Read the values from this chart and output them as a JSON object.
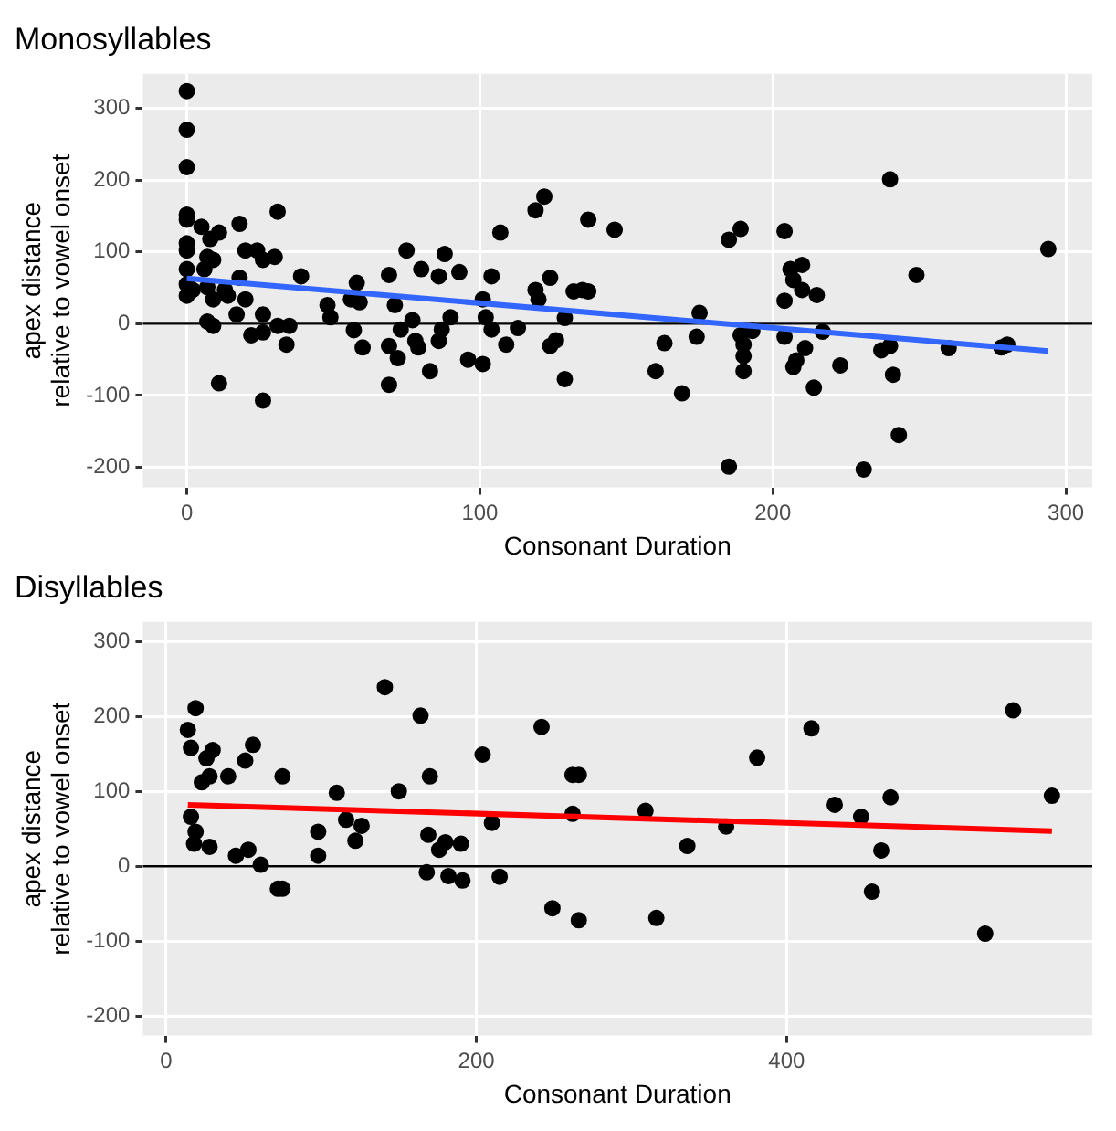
{
  "chart_data": [
    {
      "type": "scatter",
      "title": "Monosyllables",
      "xlabel": "Consonant Duration",
      "ylabel": "apex distance\nrelative to vowel onset",
      "xlim": [
        -15,
        309
      ],
      "ylim": [
        -228,
        348
      ],
      "xticks": [
        0,
        100,
        200,
        300
      ],
      "yticks": [
        -200,
        -100,
        0,
        100,
        200,
        300
      ],
      "grid": true,
      "legend": false,
      "ref_lines": [
        {
          "axis": "y",
          "value": 0,
          "color": "#000000"
        }
      ],
      "series": [
        {
          "type": "scatter",
          "marker": "circle",
          "color": "#000000",
          "x": [
            0,
            0,
            0,
            0,
            0,
            0,
            0,
            0,
            0,
            0,
            5,
            8,
            7,
            11,
            6,
            9,
            2,
            7,
            13,
            9,
            14,
            18,
            20,
            24,
            26,
            30,
            31,
            18,
            20,
            17,
            22,
            26,
            26,
            7,
            9,
            11,
            26,
            31,
            35,
            34,
            39,
            48,
            49,
            58,
            56,
            59,
            57,
            60,
            69,
            69,
            69,
            71,
            72,
            75,
            73,
            77,
            78,
            79,
            80,
            83,
            86,
            88,
            86,
            87,
            90,
            93,
            96,
            101,
            101,
            102,
            104,
            104,
            107,
            109,
            113,
            119,
            122,
            119,
            120,
            124,
            124,
            126,
            129,
            129,
            137,
            132,
            135,
            137,
            146,
            160,
            163,
            169,
            174,
            175,
            185,
            189,
            185,
            189,
            190,
            190,
            190,
            193,
            204,
            206,
            210,
            207,
            210,
            204,
            215,
            204,
            211,
            208,
            207,
            217,
            214,
            223,
            231,
            240,
            237,
            240,
            241,
            243,
            249,
            260,
            278,
            280,
            294
          ],
          "values": [
            324,
            270,
            218,
            152,
            145,
            112,
            102,
            76,
            55,
            39,
            135,
            118,
            93,
            127,
            76,
            89,
            47,
            51,
            47,
            34,
            39,
            139,
            102,
            102,
            89,
            93,
            156,
            64,
            34,
            13,
            -16,
            -12,
            13,
            3,
            -3,
            -83,
            -107,
            -3,
            -3,
            -29,
            66,
            26,
            9,
            57,
            34,
            30,
            -9,
            -33,
            68,
            -31,
            -85,
            26,
            -48,
            102,
            -8,
            5,
            -24,
            -33,
            76,
            -66,
            66,
            97,
            -24,
            -8,
            9,
            72,
            -50,
            -56,
            34,
            9,
            66,
            -8,
            127,
            -29,
            -6,
            158,
            177,
            47,
            34,
            64,
            -31,
            -23,
            -77,
            8,
            145,
            45,
            47,
            45,
            131,
            -66,
            -27,
            -97,
            -18,
            15,
            117,
            132,
            -199,
            -16,
            -29,
            -45,
            -66,
            -10,
            129,
            76,
            82,
            61,
            47,
            32,
            40,
            -18,
            -34,
            -51,
            -60,
            -11,
            -89,
            -58,
            -203,
            201,
            -37,
            -31,
            -71,
            -155,
            68,
            -34,
            -33,
            -29,
            104
          ]
        },
        {
          "type": "line",
          "marker": "none",
          "line_style": "solid",
          "color": "#3366ff",
          "x": [
            0,
            294
          ],
          "values": [
            63,
            -38
          ]
        }
      ]
    },
    {
      "type": "scatter",
      "title": "Disyllables",
      "xlabel": "Consonant Duration",
      "ylabel": "apex distance\nrelative to vowel onset",
      "xlim": [
        -15,
        597
      ],
      "ylim": [
        -226,
        326
      ],
      "xticks": [
        0,
        200,
        400
      ],
      "yticks": [
        -200,
        -100,
        0,
        100,
        200,
        300
      ],
      "grid": true,
      "legend": false,
      "ref_lines": [
        {
          "axis": "y",
          "value": 0,
          "color": "#000000"
        }
      ],
      "series": [
        {
          "type": "scatter",
          "marker": "circle",
          "color": "#000000",
          "x": [
            14,
            19,
            16,
            16,
            19,
            18,
            23,
            28,
            26,
            30,
            28,
            40,
            45,
            51,
            53,
            56,
            61,
            72,
            75,
            75,
            98,
            98,
            110,
            116,
            122,
            126,
            141,
            150,
            164,
            170,
            169,
            168,
            176,
            180,
            182,
            190,
            191,
            204,
            210,
            215,
            242,
            249,
            262,
            266,
            262,
            266,
            309,
            316,
            336,
            361,
            381,
            416,
            431,
            448,
            467,
            461,
            455,
            528,
            546,
            571
          ],
          "values": [
            182,
            211,
            158,
            66,
            46,
            30,
            112,
            120,
            144,
            155,
            26,
            120,
            14,
            141,
            22,
            162,
            2,
            -30,
            -30,
            120,
            46,
            14,
            98,
            62,
            34,
            54,
            239,
            100,
            201,
            120,
            42,
            -8,
            22,
            32,
            -13,
            30,
            -19,
            149,
            58,
            -14,
            186,
            -56,
            122,
            122,
            70,
            -72,
            74,
            -69,
            27,
            53,
            145,
            184,
            82,
            66,
            92,
            21,
            -34,
            -90,
            208,
            94
          ]
        },
        {
          "type": "line",
          "marker": "none",
          "line_style": "solid",
          "color": "#ff0000",
          "x": [
            14,
            571
          ],
          "values": [
            82,
            47
          ]
        }
      ]
    }
  ]
}
